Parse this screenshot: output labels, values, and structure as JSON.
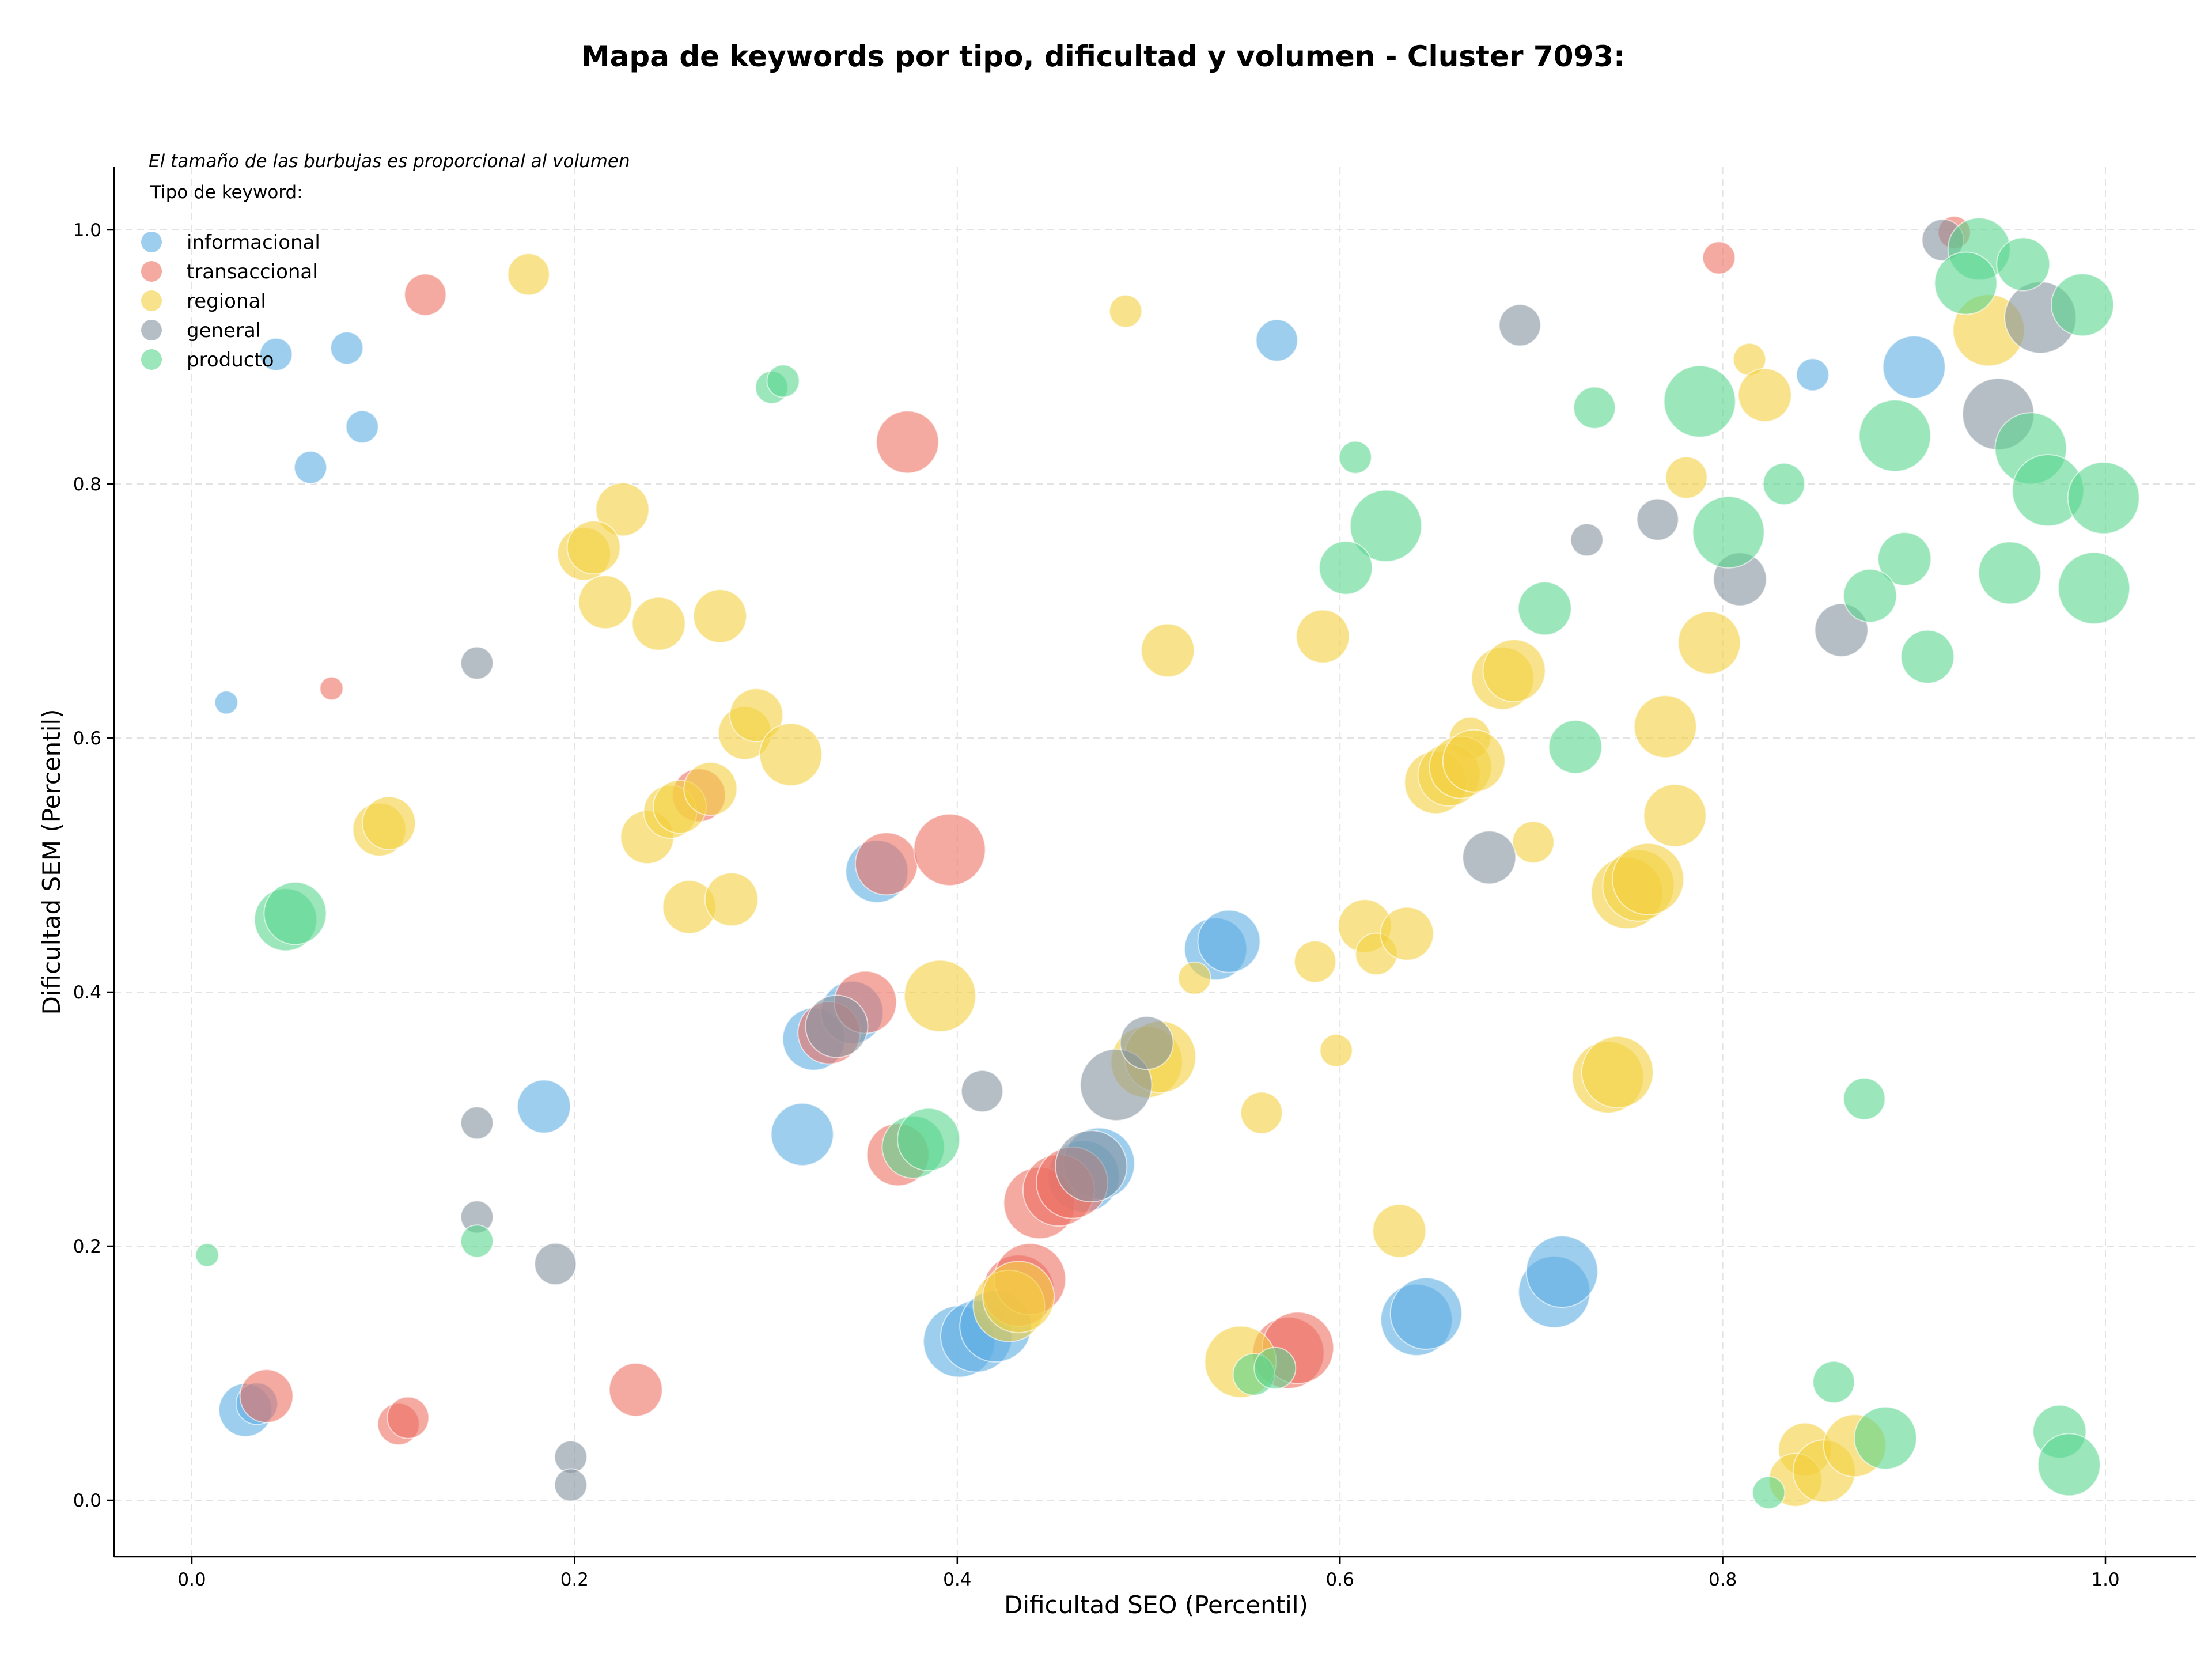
{
  "chart_data": {
    "type": "scatter",
    "title": "Mapa de keywords por tipo, dificultad y volumen - Cluster 7093:",
    "xlabel": "Dificultad SEO (Percentil)",
    "ylabel": "Dificultad SEM (Percentil)",
    "xlim": [
      -0.04,
      1.05
    ],
    "ylim": [
      -0.045,
      1.05
    ],
    "xticks": [
      0.0,
      0.2,
      0.4,
      0.6,
      0.8,
      1.0
    ],
    "yticks": [
      0.0,
      0.2,
      0.4,
      0.6,
      0.8,
      1.0
    ],
    "xtick_labels": [
      "0.0",
      "0.2",
      "0.4",
      "0.6",
      "0.8",
      "1.0"
    ],
    "ytick_labels": [
      "0.0",
      "0.2",
      "0.4",
      "0.6",
      "0.8",
      "1.0"
    ],
    "grid": true,
    "legend_position": "top-left",
    "size_note": "El tamaño de las burbujas es proporcional al volumen",
    "legend_title": "Tipo de keyword:",
    "series": [
      {
        "name": "informacional",
        "color": "#5DADE2",
        "points": [
          [
            0.044,
            0.902,
            2
          ],
          [
            0.081,
            0.907,
            2
          ],
          [
            0.089,
            0.845,
            2
          ],
          [
            0.062,
            0.813,
            2
          ],
          [
            0.018,
            0.628,
            1
          ],
          [
            0.567,
            0.913,
            3
          ],
          [
            0.847,
            0.886,
            2
          ],
          [
            0.9,
            0.892,
            5
          ],
          [
            0.184,
            0.31,
            4
          ],
          [
            0.319,
            0.288,
            5
          ],
          [
            0.358,
            0.495,
            5
          ],
          [
            0.325,
            0.363,
            5
          ],
          [
            0.345,
            0.384,
            5
          ],
          [
            0.535,
            0.434,
            5
          ],
          [
            0.542,
            0.44,
            5
          ],
          [
            0.028,
            0.071,
            4
          ],
          [
            0.034,
            0.076,
            3
          ],
          [
            0.401,
            0.125,
            6
          ],
          [
            0.41,
            0.129,
            6
          ],
          [
            0.42,
            0.137,
            6
          ],
          [
            0.466,
            0.255,
            6
          ],
          [
            0.474,
            0.265,
            6
          ],
          [
            0.64,
            0.142,
            6
          ],
          [
            0.645,
            0.147,
            6
          ],
          [
            0.712,
            0.164,
            6
          ],
          [
            0.716,
            0.18,
            6
          ]
        ]
      },
      {
        "name": "transaccional",
        "color": "#EC7063",
        "points": [
          [
            0.122,
            0.949,
            3
          ],
          [
            0.073,
            0.639,
            1
          ],
          [
            0.374,
            0.833,
            5
          ],
          [
            0.798,
            0.978,
            2
          ],
          [
            0.921,
            0.998,
            2
          ],
          [
            0.265,
            0.555,
            4
          ],
          [
            0.363,
            0.501,
            5
          ],
          [
            0.396,
            0.512,
            6
          ],
          [
            0.333,
            0.368,
            5
          ],
          [
            0.352,
            0.392,
            5
          ],
          [
            0.369,
            0.272,
            5
          ],
          [
            0.039,
            0.082,
            4
          ],
          [
            0.108,
            0.06,
            3
          ],
          [
            0.113,
            0.065,
            3
          ],
          [
            0.232,
            0.087,
            4
          ],
          [
            0.432,
            0.165,
            6
          ],
          [
            0.438,
            0.174,
            6
          ],
          [
            0.443,
            0.234,
            6
          ],
          [
            0.453,
            0.244,
            6
          ],
          [
            0.46,
            0.25,
            6
          ],
          [
            0.573,
            0.116,
            6
          ],
          [
            0.578,
            0.12,
            6
          ]
        ]
      },
      {
        "name": "regional",
        "color": "#F4D03F",
        "points": [
          [
            0.176,
            0.965,
            3
          ],
          [
            0.488,
            0.936,
            2
          ],
          [
            0.814,
            0.898,
            2
          ],
          [
            0.822,
            0.87,
            4
          ],
          [
            0.781,
            0.805,
            3
          ],
          [
            0.225,
            0.78,
            4
          ],
          [
            0.205,
            0.745,
            4
          ],
          [
            0.21,
            0.75,
            4
          ],
          [
            0.216,
            0.707,
            4
          ],
          [
            0.244,
            0.69,
            4
          ],
          [
            0.276,
            0.696,
            4
          ],
          [
            0.939,
            0.921,
            6
          ],
          [
            0.51,
            0.669,
            4
          ],
          [
            0.591,
            0.68,
            4
          ],
          [
            0.685,
            0.647,
            5
          ],
          [
            0.691,
            0.653,
            5
          ],
          [
            0.793,
            0.675,
            5
          ],
          [
            0.77,
            0.609,
            5
          ],
          [
            0.289,
            0.604,
            4
          ],
          [
            0.295,
            0.618,
            4
          ],
          [
            0.313,
            0.587,
            5
          ],
          [
            0.098,
            0.528,
            4
          ],
          [
            0.103,
            0.533,
            4
          ],
          [
            0.238,
            0.522,
            4
          ],
          [
            0.25,
            0.542,
            4
          ],
          [
            0.255,
            0.546,
            4
          ],
          [
            0.271,
            0.56,
            4
          ],
          [
            0.26,
            0.467,
            4
          ],
          [
            0.282,
            0.473,
            4
          ],
          [
            0.391,
            0.397,
            6
          ],
          [
            0.668,
            0.6,
            3
          ],
          [
            0.65,
            0.565,
            5
          ],
          [
            0.657,
            0.571,
            5
          ],
          [
            0.663,
            0.577,
            5
          ],
          [
            0.67,
            0.582,
            5
          ],
          [
            0.701,
            0.518,
            3
          ],
          [
            0.775,
            0.539,
            5
          ],
          [
            0.75,
            0.478,
            6
          ],
          [
            0.756,
            0.484,
            6
          ],
          [
            0.761,
            0.489,
            6
          ],
          [
            0.613,
            0.452,
            4
          ],
          [
            0.619,
            0.43,
            3
          ],
          [
            0.635,
            0.446,
            4
          ],
          [
            0.587,
            0.424,
            3
          ],
          [
            0.524,
            0.411,
            2
          ],
          [
            0.598,
            0.354,
            2
          ],
          [
            0.499,
            0.345,
            6
          ],
          [
            0.506,
            0.349,
            6
          ],
          [
            0.74,
            0.333,
            6
          ],
          [
            0.745,
            0.337,
            6
          ],
          [
            0.559,
            0.305,
            3
          ],
          [
            0.631,
            0.212,
            4
          ],
          [
            0.548,
            0.109,
            6
          ],
          [
            0.427,
            0.153,
            6
          ],
          [
            0.432,
            0.16,
            6
          ],
          [
            0.843,
            0.04,
            4
          ],
          [
            0.838,
            0.016,
            4
          ],
          [
            0.853,
            0.023,
            5
          ],
          [
            0.869,
            0.043,
            5
          ]
        ]
      },
      {
        "name": "general",
        "color": "#85929E",
        "points": [
          [
            0.915,
            0.992,
            3
          ],
          [
            0.694,
            0.925,
            3
          ],
          [
            0.944,
            0.855,
            6
          ],
          [
            0.966,
            0.931,
            6
          ],
          [
            0.766,
            0.772,
            3
          ],
          [
            0.729,
            0.756,
            2
          ],
          [
            0.809,
            0.725,
            4
          ],
          [
            0.862,
            0.685,
            4
          ],
          [
            0.149,
            0.659,
            2
          ],
          [
            0.678,
            0.506,
            4
          ],
          [
            0.337,
            0.373,
            5
          ],
          [
            0.413,
            0.322,
            3
          ],
          [
            0.483,
            0.327,
            6
          ],
          [
            0.499,
            0.36,
            4
          ],
          [
            0.47,
            0.263,
            6
          ],
          [
            0.149,
            0.297,
            2
          ],
          [
            0.149,
            0.223,
            2
          ],
          [
            0.19,
            0.186,
            3
          ],
          [
            0.198,
            0.034,
            2
          ],
          [
            0.198,
            0.012,
            2
          ]
        ]
      },
      {
        "name": "producto",
        "color": "#58D68D",
        "points": [
          [
            0.303,
            0.876,
            2
          ],
          [
            0.309,
            0.881,
            2
          ],
          [
            0.934,
            0.985,
            5
          ],
          [
            0.957,
            0.973,
            4
          ],
          [
            0.927,
            0.958,
            5
          ],
          [
            0.988,
            0.941,
            5
          ],
          [
            0.733,
            0.86,
            3
          ],
          [
            0.788,
            0.865,
            6
          ],
          [
            0.89,
            0.838,
            6
          ],
          [
            0.961,
            0.828,
            6
          ],
          [
            0.608,
            0.821,
            2
          ],
          [
            0.832,
            0.8,
            3
          ],
          [
            0.97,
            0.795,
            6
          ],
          [
            0.624,
            0.767,
            6
          ],
          [
            0.803,
            0.762,
            6
          ],
          [
            0.999,
            0.789,
            6
          ],
          [
            0.603,
            0.734,
            4
          ],
          [
            0.895,
            0.741,
            4
          ],
          [
            0.877,
            0.712,
            4
          ],
          [
            0.95,
            0.73,
            5
          ],
          [
            0.994,
            0.718,
            6
          ],
          [
            0.707,
            0.702,
            4
          ],
          [
            0.907,
            0.664,
            4
          ],
          [
            0.723,
            0.593,
            4
          ],
          [
            0.049,
            0.457,
            5
          ],
          [
            0.054,
            0.462,
            5
          ],
          [
            0.377,
            0.278,
            5
          ],
          [
            0.385,
            0.284,
            5
          ],
          [
            0.008,
            0.193,
            1
          ],
          [
            0.149,
            0.204,
            2
          ],
          [
            0.555,
            0.099,
            3
          ],
          [
            0.566,
            0.104,
            3
          ],
          [
            0.874,
            0.316,
            3
          ],
          [
            0.858,
            0.093,
            3
          ],
          [
            0.885,
            0.049,
            5
          ],
          [
            0.976,
            0.054,
            4
          ],
          [
            0.981,
            0.028,
            5
          ],
          [
            0.824,
            0.006,
            2
          ]
        ]
      }
    ]
  }
}
